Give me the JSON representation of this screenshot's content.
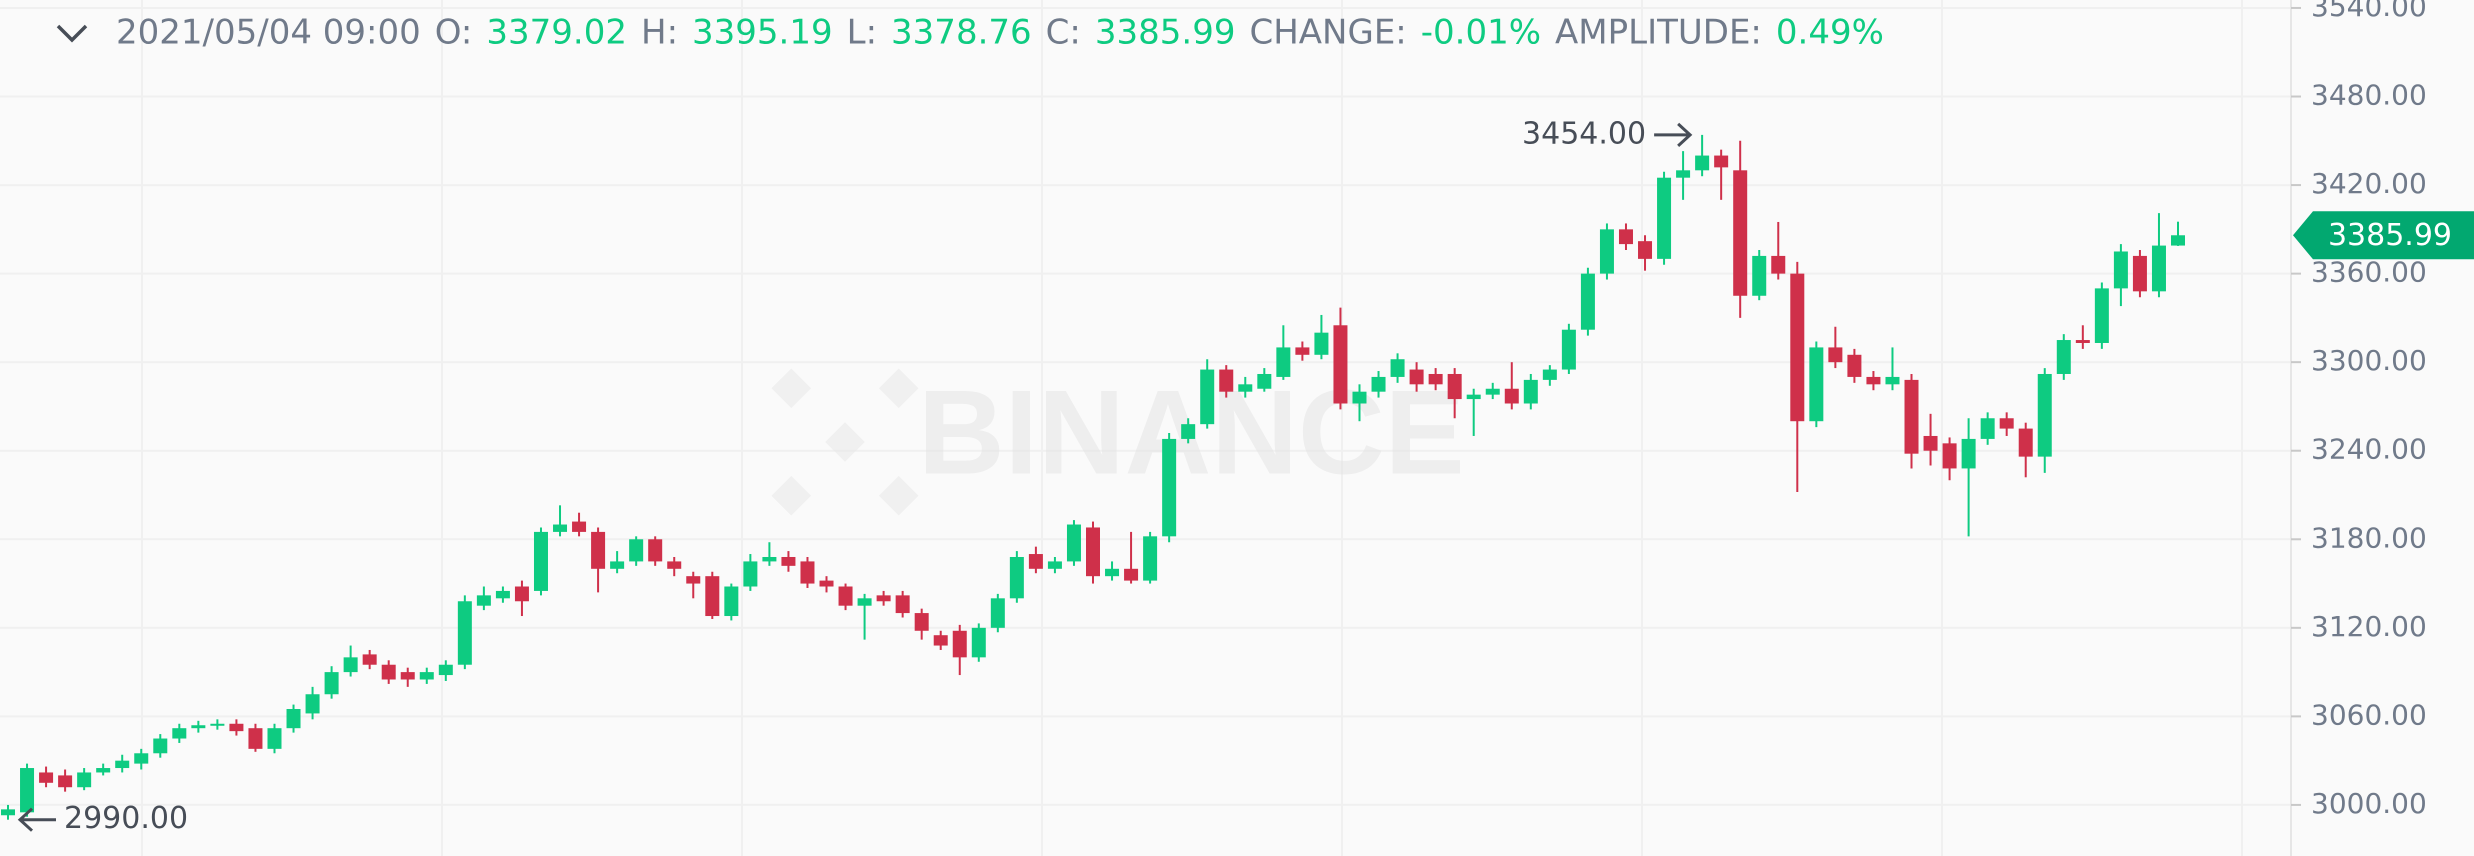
{
  "chart_data": {
    "type": "candlestick",
    "datetime": "2021/05/04 09:00",
    "ohlc_labels": [
      "O:",
      "H:",
      "L:",
      "C:"
    ],
    "change": {
      "label": "CHANGE:",
      "value": "-0.01%"
    },
    "amplitude": {
      "label": "AMPLITUDE:",
      "value": "0.49%"
    },
    "watermark": "BINANCE",
    "up_color": "#0ecb81",
    "down_color": "#cf304a",
    "grid": true,
    "ylim": [
      2965.4,
      3545.4
    ],
    "yticks": [
      {
        "value": 3000,
        "label": "3000.00"
      },
      {
        "value": 3060,
        "label": "3060.00"
      },
      {
        "value": 3120,
        "label": "3120.00"
      },
      {
        "value": 3180,
        "label": "3180.00"
      },
      {
        "value": 3240,
        "label": "3240.00"
      },
      {
        "value": 3300,
        "label": "3300.00"
      },
      {
        "value": 3360,
        "label": "3360.00"
      },
      {
        "value": 3420,
        "label": "3420.00"
      },
      {
        "value": 3480,
        "label": "3480.00"
      },
      {
        "value": 3540,
        "label": "3540.00"
      }
    ],
    "annotations": [
      {
        "index": 89,
        "value": 3454,
        "label": "3454.00",
        "side": "left"
      },
      {
        "index": 0,
        "value": 2990,
        "label": "2990.00",
        "side": "right"
      }
    ],
    "open": [
      2993,
      2995,
      3022,
      3020,
      3012,
      3022,
      3025,
      3028,
      3035,
      3045,
      3052,
      3054,
      3055,
      3052,
      3038,
      3052,
      3062,
      3075,
      3090,
      3102,
      3095,
      3090,
      3085,
      3088,
      3095,
      3135,
      3140,
      3148,
      3145,
      3185,
      3192,
      3185,
      3160,
      3165,
      3180,
      3165,
      3155,
      3155,
      3128,
      3148,
      3165,
      3168,
      3165,
      3152,
      3148,
      3135,
      3142,
      3142,
      3130,
      3115,
      3118,
      3100,
      3120,
      3140,
      3170,
      3160,
      3165,
      3188,
      3155,
      3160,
      3152,
      3182,
      3248,
      3258,
      3295,
      3280,
      3282,
      3290,
      3310,
      3305,
      3325,
      3272,
      3280,
      3290,
      3295,
      3292,
      3292,
      3275,
      3278,
      3282,
      3272,
      3288,
      3295,
      3322,
      3360,
      3390,
      3382,
      3370,
      3425,
      3430,
      3440,
      3430,
      3345,
      3372,
      3360,
      3260,
      3310,
      3305,
      3290,
      3285,
      3288,
      3250,
      3245,
      3228,
      3248,
      3262,
      3255,
      3236,
      3292,
      3315,
      3313,
      3350,
      3372,
      3348,
      3379.02
    ],
    "high": [
      3000,
      3028,
      3026,
      3024,
      3025,
      3028,
      3034,
      3038,
      3048,
      3055,
      3057,
      3058,
      3058,
      3055,
      3055,
      3068,
      3080,
      3094,
      3108,
      3105,
      3098,
      3093,
      3093,
      3098,
      3142,
      3148,
      3148,
      3152,
      3188,
      3203,
      3198,
      3188,
      3172,
      3182,
      3182,
      3168,
      3158,
      3158,
      3150,
      3170,
      3178,
      3172,
      3168,
      3155,
      3150,
      3143,
      3145,
      3145,
      3133,
      3118,
      3122,
      3123,
      3143,
      3172,
      3175,
      3168,
      3193,
      3192,
      3165,
      3185,
      3185,
      3252,
      3262,
      3302,
      3298,
      3290,
      3296,
      3325,
      3314,
      3332,
      3337,
      3285,
      3294,
      3306,
      3300,
      3296,
      3296,
      3282,
      3286,
      3300,
      3292,
      3298,
      3326,
      3364,
      3394,
      3394,
      3386,
      3429,
      3443,
      3454,
      3444,
      3450,
      3376,
      3395,
      3368,
      3314,
      3324,
      3309,
      3294,
      3310,
      3292,
      3265,
      3249,
      3262,
      3266,
      3266,
      3259,
      3296,
      3319,
      3325,
      3354,
      3380,
      3376,
      3401,
      3395.19
    ],
    "low": [
      2990,
      2992,
      3012,
      3009,
      3010,
      3020,
      3022,
      3024,
      3032,
      3042,
      3049,
      3051,
      3047,
      3036,
      3035,
      3049,
      3058,
      3072,
      3087,
      3092,
      3082,
      3080,
      3082,
      3084,
      3092,
      3132,
      3137,
      3128,
      3142,
      3182,
      3182,
      3144,
      3157,
      3162,
      3162,
      3155,
      3140,
      3126,
      3125,
      3145,
      3162,
      3158,
      3147,
      3144,
      3132,
      3112,
      3135,
      3127,
      3112,
      3105,
      3088,
      3097,
      3117,
      3137,
      3157,
      3157,
      3162,
      3150,
      3152,
      3150,
      3150,
      3178,
      3245,
      3255,
      3276,
      3276,
      3280,
      3288,
      3301,
      3302,
      3268,
      3260,
      3276,
      3286,
      3280,
      3281,
      3262,
      3250,
      3275,
      3268,
      3268,
      3284,
      3292,
      3318,
      3356,
      3376,
      3362,
      3366,
      3410,
      3426,
      3410,
      3330,
      3342,
      3356,
      3212,
      3256,
      3296,
      3286,
      3281,
      3281,
      3228,
      3230,
      3220,
      3182,
      3244,
      3250,
      3222,
      3225,
      3288,
      3309,
      3309,
      3338,
      3344,
      3344,
      3378.76
    ],
    "close": [
      2997,
      3025,
      3015,
      3012,
      3022,
      3025,
      3030,
      3035,
      3045,
      3052,
      3054,
      3055,
      3050,
      3038,
      3052,
      3065,
      3075,
      3090,
      3100,
      3095,
      3085,
      3085,
      3090,
      3095,
      3138,
      3142,
      3145,
      3138,
      3185,
      3190,
      3185,
      3160,
      3165,
      3180,
      3165,
      3160,
      3150,
      3128,
      3148,
      3165,
      3168,
      3162,
      3150,
      3148,
      3135,
      3140,
      3138,
      3130,
      3118,
      3108,
      3100,
      3120,
      3140,
      3168,
      3160,
      3165,
      3190,
      3155,
      3160,
      3152,
      3182,
      3248,
      3258,
      3295,
      3280,
      3285,
      3292,
      3310,
      3305,
      3320,
      3272,
      3280,
      3290,
      3302,
      3285,
      3285,
      3275,
      3278,
      3282,
      3272,
      3288,
      3295,
      3322,
      3360,
      3390,
      3380,
      3370,
      3425,
      3430,
      3440,
      3432,
      3345,
      3372,
      3360,
      3260,
      3310,
      3300,
      3290,
      3285,
      3290,
      3238,
      3240,
      3228,
      3248,
      3262,
      3255,
      3236,
      3292,
      3315,
      3313,
      3350,
      3375,
      3348,
      3379,
      3385.99
    ]
  }
}
